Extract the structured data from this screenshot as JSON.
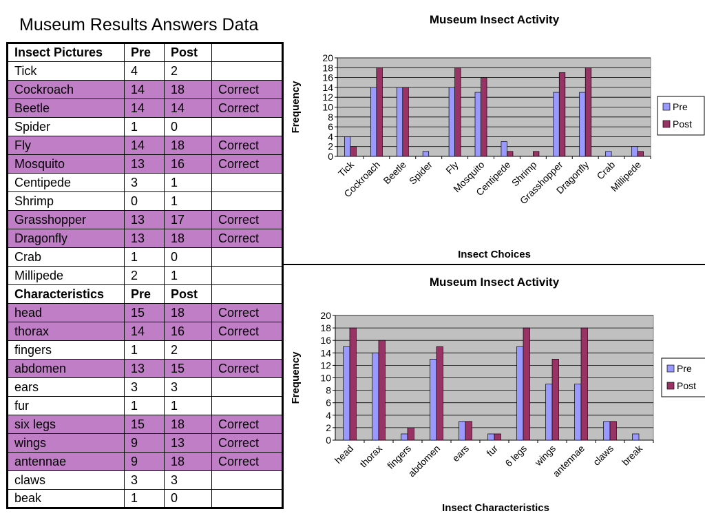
{
  "page": {
    "title": "Museum Results Answers Data"
  },
  "table": {
    "sections": [
      {
        "header": [
          "Insect Pictures",
          "Pre",
          "Post"
        ],
        "rows": [
          [
            "Tick",
            "4",
            "2",
            ""
          ],
          [
            "Cockroach",
            "14",
            "18",
            "Correct"
          ],
          [
            "Beetle",
            "14",
            "14",
            "Correct"
          ],
          [
            "Spider",
            "1",
            "0",
            ""
          ],
          [
            "Fly",
            "14",
            "18",
            "Correct"
          ],
          [
            "Mosquito",
            "13",
            "16",
            "Correct"
          ],
          [
            "Centipede",
            "3",
            "1",
            ""
          ],
          [
            "Shrimp",
            "0",
            "1",
            ""
          ],
          [
            "Grasshopper",
            "13",
            "17",
            "Correct"
          ],
          [
            "Dragonfly",
            "13",
            "18",
            "Correct"
          ],
          [
            "Crab",
            "1",
            "0",
            ""
          ],
          [
            "Millipede",
            "2",
            "1",
            ""
          ]
        ]
      },
      {
        "header": [
          "Characteristics",
          "Pre",
          "Post"
        ],
        "rows": [
          [
            "head",
            "15",
            "18",
            "Correct"
          ],
          [
            "thorax",
            "14",
            "16",
            "Correct"
          ],
          [
            "fingers",
            "1",
            "2",
            ""
          ],
          [
            "abdomen",
            "13",
            "15",
            "Correct"
          ],
          [
            "ears",
            "3",
            "3",
            ""
          ],
          [
            "fur",
            "1",
            "1",
            ""
          ],
          [
            "six legs",
            "15",
            "18",
            "Correct"
          ],
          [
            "wings",
            "9",
            "13",
            "Correct"
          ],
          [
            "antennae",
            "9",
            "18",
            "Correct"
          ],
          [
            "claws",
            "3",
            "3",
            ""
          ],
          [
            "beak",
            "1",
            "0",
            ""
          ]
        ]
      }
    ],
    "highlight_color": "#c07ec6"
  },
  "colors": {
    "pre": "#9999ff",
    "post": "#993366",
    "plot_bg": "#c0c0c0"
  },
  "chart_data": [
    {
      "type": "bar",
      "title": "Museum Insect Activity",
      "xlabel": "Insect Choices",
      "ylabel": "Frequency",
      "ylim": [
        0,
        20
      ],
      "yticks": [
        0,
        2,
        4,
        6,
        8,
        10,
        12,
        14,
        16,
        18,
        20
      ],
      "grid": true,
      "legend": "right",
      "categories": [
        "Tick",
        "Cockroach",
        "Beetle",
        "Spider",
        "Fly",
        "Mosquito",
        "Centipede",
        "Shrimp",
        "Grasshopper",
        "Dragonfly",
        "Crab",
        "Millipede"
      ],
      "series": [
        {
          "name": "Pre",
          "values": [
            4,
            14,
            14,
            1,
            14,
            13,
            3,
            0,
            13,
            13,
            1,
            2
          ]
        },
        {
          "name": "Post",
          "values": [
            2,
            18,
            14,
            0,
            18,
            16,
            1,
            1,
            17,
            18,
            0,
            1
          ]
        }
      ]
    },
    {
      "type": "bar",
      "title": "Museum Insect Activity",
      "xlabel": "Insect Characteristics",
      "ylabel": "Frequency",
      "ylim": [
        0,
        20
      ],
      "yticks": [
        0,
        2,
        4,
        6,
        8,
        10,
        12,
        14,
        16,
        18,
        20
      ],
      "grid": true,
      "legend": "right",
      "categories": [
        "head",
        "thorax",
        "fingers",
        "abdomen",
        "ears",
        "fur",
        "6 legs",
        "wings",
        "antennae",
        "claws",
        "break"
      ],
      "series": [
        {
          "name": "Pre",
          "values": [
            15,
            14,
            1,
            13,
            3,
            1,
            15,
            9,
            9,
            3,
            1
          ]
        },
        {
          "name": "Post",
          "values": [
            18,
            16,
            2,
            15,
            3,
            1,
            18,
            13,
            18,
            3,
            0
          ]
        }
      ]
    }
  ]
}
